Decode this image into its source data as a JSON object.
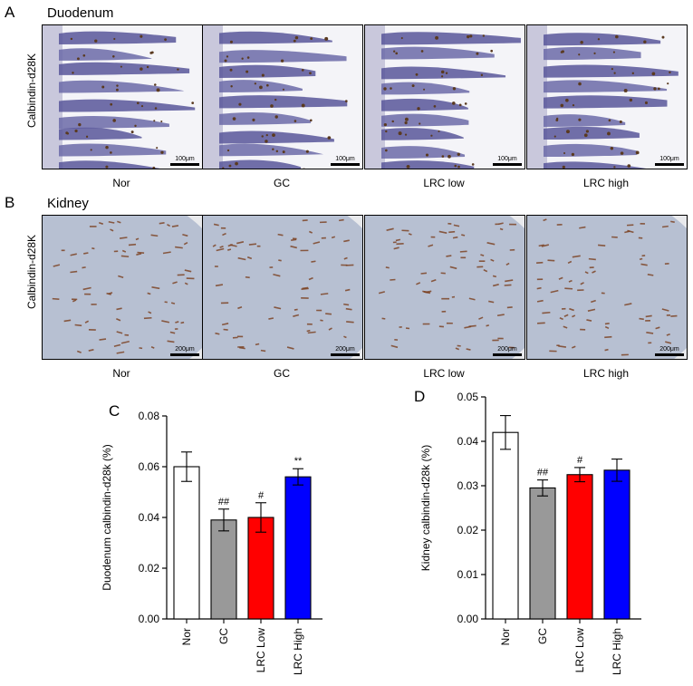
{
  "panel_a": {
    "letter": "A",
    "tissue": "Duodenum",
    "row_label": "Calbindin-d28K",
    "scale": "100μm",
    "groups": [
      "Nor",
      "GC",
      "LRC low",
      "LRC high"
    ]
  },
  "panel_b": {
    "letter": "B",
    "tissue": "Kidney",
    "row_label": "Calbindin-d28K",
    "scale": "200μm",
    "groups": [
      "Nor",
      "GC",
      "LRC low",
      "LRC high"
    ]
  },
  "chart_data": [
    {
      "panel": "C",
      "type": "bar",
      "categories": [
        "Nor",
        "GC",
        "LRC Low",
        "LRC High"
      ],
      "values": [
        0.06,
        0.039,
        0.04,
        0.056
      ],
      "errors": [
        0.0058,
        0.0043,
        0.0058,
        0.0032
      ],
      "significance": [
        "",
        "##",
        "#",
        "**"
      ],
      "colors": [
        "#ffffff",
        "#999999",
        "#ff0000",
        "#0000ff"
      ],
      "ylabel": "Duodenum calbindin-d28k (%)",
      "ylim": [
        0,
        0.08
      ],
      "yticks": [
        "0.00",
        "0.02",
        "0.04",
        "0.06",
        "0.08"
      ],
      "grid": false
    },
    {
      "panel": "D",
      "type": "bar",
      "categories": [
        "Nor",
        "GC",
        "LRC Low",
        "LRC High"
      ],
      "values": [
        0.042,
        0.0295,
        0.0325,
        0.0335
      ],
      "errors": [
        0.0038,
        0.0018,
        0.0016,
        0.0025
      ],
      "significance": [
        "",
        "##",
        "#",
        ""
      ],
      "colors": [
        "#ffffff",
        "#999999",
        "#ff0000",
        "#0000ff"
      ],
      "ylabel": "Kidney calbindin-d28k (%)",
      "ylim": [
        0,
        0.05
      ],
      "yticks": [
        "0.00",
        "0.01",
        "0.02",
        "0.03",
        "0.04",
        "0.05"
      ],
      "grid": false
    }
  ]
}
